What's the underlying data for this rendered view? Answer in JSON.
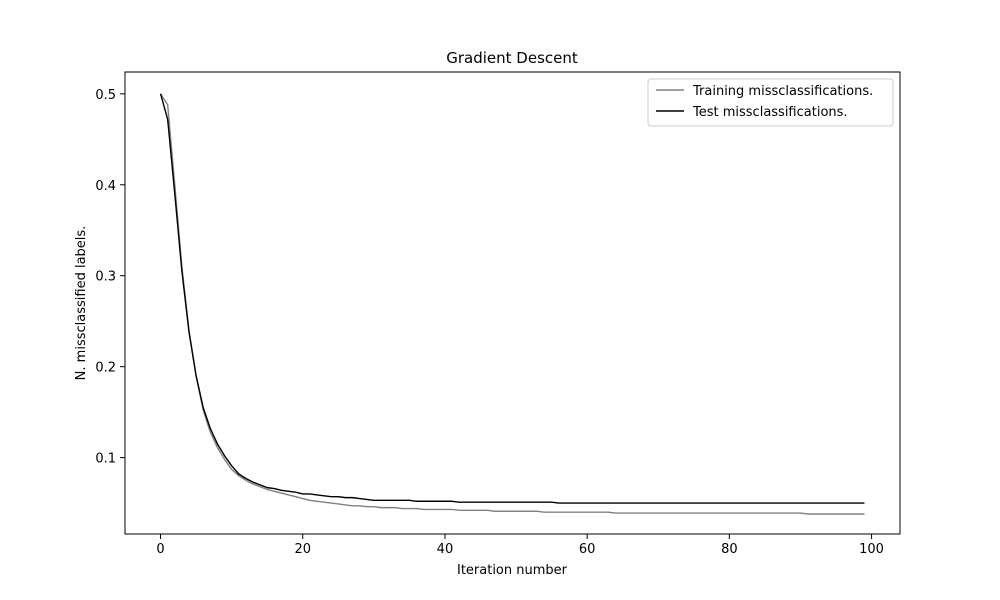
{
  "chart_data": {
    "type": "line",
    "title": "Gradient Descent",
    "xlabel": "Iteration number",
    "ylabel": "N. missclassified labels.",
    "xlim": [
      -5,
      104
    ],
    "ylim": [
      0.016,
      0.524
    ],
    "xticks": [
      0,
      20,
      40,
      60,
      80,
      100
    ],
    "yticks": [
      0.1,
      0.2,
      0.3,
      0.4,
      0.5
    ],
    "grid": false,
    "legend_position": "top-right",
    "series": [
      {
        "name": "Training missclassifications.",
        "color": "#808080",
        "x": [
          0,
          1,
          2,
          3,
          4,
          5,
          6,
          7,
          8,
          9,
          10,
          11,
          12,
          13,
          14,
          15,
          16,
          17,
          18,
          19,
          20,
          21,
          22,
          23,
          24,
          25,
          26,
          27,
          28,
          29,
          30,
          31,
          32,
          33,
          34,
          35,
          36,
          37,
          38,
          39,
          40,
          41,
          42,
          43,
          44,
          45,
          46,
          47,
          48,
          49,
          50,
          51,
          52,
          53,
          54,
          55,
          56,
          57,
          58,
          59,
          60,
          61,
          62,
          63,
          64,
          65,
          66,
          67,
          68,
          69,
          70,
          71,
          72,
          73,
          74,
          75,
          76,
          77,
          78,
          79,
          80,
          81,
          82,
          83,
          84,
          85,
          86,
          87,
          88,
          89,
          90,
          91,
          92,
          93,
          94,
          95,
          96,
          97,
          98,
          99
        ],
        "y": [
          0.5,
          0.488,
          0.4,
          0.31,
          0.24,
          0.19,
          0.152,
          0.128,
          0.111,
          0.098,
          0.087,
          0.08,
          0.075,
          0.071,
          0.068,
          0.065,
          0.063,
          0.061,
          0.059,
          0.057,
          0.055,
          0.053,
          0.052,
          0.051,
          0.05,
          0.049,
          0.048,
          0.047,
          0.047,
          0.046,
          0.046,
          0.045,
          0.045,
          0.045,
          0.044,
          0.044,
          0.044,
          0.043,
          0.043,
          0.043,
          0.043,
          0.043,
          0.042,
          0.042,
          0.042,
          0.042,
          0.042,
          0.041,
          0.041,
          0.041,
          0.041,
          0.041,
          0.041,
          0.041,
          0.04,
          0.04,
          0.04,
          0.04,
          0.04,
          0.04,
          0.04,
          0.04,
          0.04,
          0.04,
          0.039,
          0.039,
          0.039,
          0.039,
          0.039,
          0.039,
          0.039,
          0.039,
          0.039,
          0.039,
          0.039,
          0.039,
          0.039,
          0.039,
          0.039,
          0.039,
          0.039,
          0.039,
          0.039,
          0.039,
          0.039,
          0.039,
          0.039,
          0.039,
          0.039,
          0.039,
          0.039,
          0.038,
          0.038,
          0.038,
          0.038,
          0.038,
          0.038,
          0.038,
          0.038,
          0.038
        ]
      },
      {
        "name": "Test missclassifications.",
        "color": "#000000",
        "x": [
          0,
          1,
          2,
          3,
          4,
          5,
          6,
          7,
          8,
          9,
          10,
          11,
          12,
          13,
          14,
          15,
          16,
          17,
          18,
          19,
          20,
          21,
          22,
          23,
          24,
          25,
          26,
          27,
          28,
          29,
          30,
          31,
          32,
          33,
          34,
          35,
          36,
          37,
          38,
          39,
          40,
          41,
          42,
          43,
          44,
          45,
          46,
          47,
          48,
          49,
          50,
          51,
          52,
          53,
          54,
          55,
          56,
          57,
          58,
          59,
          60,
          61,
          62,
          63,
          64,
          65,
          66,
          67,
          68,
          69,
          70,
          71,
          72,
          73,
          74,
          75,
          76,
          77,
          78,
          79,
          80,
          81,
          82,
          83,
          84,
          85,
          86,
          87,
          88,
          89,
          90,
          91,
          92,
          93,
          94,
          95,
          96,
          97,
          98,
          99
        ],
        "y": [
          0.5,
          0.472,
          0.39,
          0.305,
          0.238,
          0.19,
          0.155,
          0.132,
          0.115,
          0.102,
          0.091,
          0.082,
          0.077,
          0.073,
          0.07,
          0.067,
          0.066,
          0.064,
          0.063,
          0.062,
          0.06,
          0.06,
          0.059,
          0.058,
          0.057,
          0.057,
          0.056,
          0.056,
          0.055,
          0.054,
          0.053,
          0.053,
          0.053,
          0.053,
          0.053,
          0.053,
          0.052,
          0.052,
          0.052,
          0.052,
          0.052,
          0.052,
          0.051,
          0.051,
          0.051,
          0.051,
          0.051,
          0.051,
          0.051,
          0.051,
          0.051,
          0.051,
          0.051,
          0.051,
          0.051,
          0.051,
          0.05,
          0.05,
          0.05,
          0.05,
          0.05,
          0.05,
          0.05,
          0.05,
          0.05,
          0.05,
          0.05,
          0.05,
          0.05,
          0.05,
          0.05,
          0.05,
          0.05,
          0.05,
          0.05,
          0.05,
          0.05,
          0.05,
          0.05,
          0.05,
          0.05,
          0.05,
          0.05,
          0.05,
          0.05,
          0.05,
          0.05,
          0.05,
          0.05,
          0.05,
          0.05,
          0.05,
          0.05,
          0.05,
          0.05,
          0.05,
          0.05,
          0.05,
          0.05,
          0.05
        ]
      }
    ]
  }
}
